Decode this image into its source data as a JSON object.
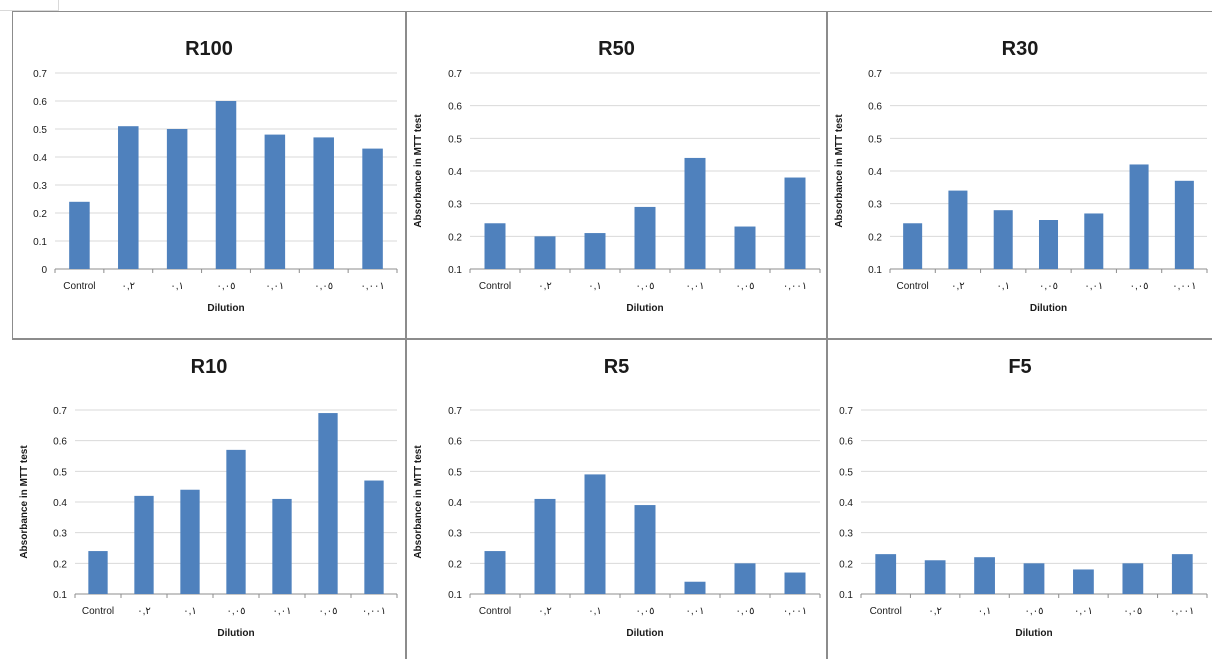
{
  "colors": {
    "bar": "#4f81bd",
    "grid": "#d9d9d9",
    "axis": "#8c8c8c",
    "text": "#1a1a1a"
  },
  "chart_data": [
    {
      "type": "bar",
      "title": "R100",
      "xlabel": "Dilution",
      "ylabel": "",
      "categories": [
        "Control",
        "٠,٢",
        "٠,١",
        "٠,٠٥",
        "٠,٠١",
        "٠,٠٥",
        "٠,٠٠١"
      ],
      "values": [
        0.24,
        0.51,
        0.5,
        0.6,
        0.48,
        0.47,
        0.43
      ],
      "ylim": [
        0,
        0.7
      ],
      "yticks": [
        "0",
        "0.1",
        "0.2",
        "0.3",
        "0.4",
        "0.5",
        "0.6",
        "0.7"
      ],
      "grid": true,
      "legend": "none"
    },
    {
      "type": "bar",
      "title": "R50",
      "xlabel": "Dilution",
      "ylabel": "Absorbance in MTT test",
      "categories": [
        "Control",
        "٠,٢",
        "٠,١",
        "٠,٠٥",
        "٠,٠١",
        "٠,٠٥",
        "٠,٠٠١"
      ],
      "values": [
        0.24,
        0.2,
        0.21,
        0.29,
        0.44,
        0.23,
        0.38
      ],
      "ylim": [
        0.1,
        0.7
      ],
      "yticks": [
        "0.1",
        "0.2",
        "0.3",
        "0.4",
        "0.5",
        "0.6",
        "0.7"
      ],
      "grid": true,
      "legend": "none"
    },
    {
      "type": "bar",
      "title": "R30",
      "xlabel": "Dilution",
      "ylabel": "Absorbance in MTT test",
      "categories": [
        "Control",
        "٠,٢",
        "٠,١",
        "٠,٠٥",
        "٠,٠١",
        "٠,٠٥",
        "٠,٠٠١"
      ],
      "values": [
        0.24,
        0.34,
        0.28,
        0.25,
        0.27,
        0.42,
        0.37
      ],
      "ylim": [
        0.1,
        0.7
      ],
      "yticks": [
        "0.1",
        "0.2",
        "0.3",
        "0.4",
        "0.5",
        "0.6",
        "0.7"
      ],
      "grid": true,
      "legend": "none"
    },
    {
      "type": "bar",
      "title": "R10",
      "xlabel": "Dilution",
      "ylabel": "Absorbance in MTT test",
      "categories": [
        "Control",
        "٠,٢",
        "٠,١",
        "٠,٠٥",
        "٠,٠١",
        "٠,٠٥",
        "٠,٠٠١"
      ],
      "values": [
        0.24,
        0.42,
        0.44,
        0.57,
        0.41,
        0.69,
        0.47
      ],
      "ylim": [
        0.1,
        0.7
      ],
      "yticks": [
        "0.1",
        "0.2",
        "0.3",
        "0.4",
        "0.5",
        "0.6",
        "0.7"
      ],
      "grid": true,
      "legend": "none"
    },
    {
      "type": "bar",
      "title": "R5",
      "xlabel": "Dilution",
      "ylabel": "Absorbance in MTT test",
      "categories": [
        "Control",
        "٠,٢",
        "٠,١",
        "٠,٠٥",
        "٠,٠١",
        "٠,٠٥",
        "٠,٠٠١"
      ],
      "values": [
        0.24,
        0.41,
        0.49,
        0.39,
        0.14,
        0.2,
        0.17
      ],
      "ylim": [
        0.1,
        0.7
      ],
      "yticks": [
        "0.1",
        "0.2",
        "0.3",
        "0.4",
        "0.5",
        "0.6",
        "0.7"
      ],
      "grid": true,
      "legend": "none"
    },
    {
      "type": "bar",
      "title": "F5",
      "xlabel": "Dilution",
      "ylabel": "",
      "categories": [
        "Control",
        "٠,٢",
        "٠,١",
        "٠,٠٥",
        "٠,٠١",
        "٠,٠٥",
        "٠,٠٠١"
      ],
      "values": [
        0.23,
        0.21,
        0.22,
        0.2,
        0.18,
        0.2,
        0.23
      ],
      "ylim": [
        0.1,
        0.7
      ],
      "yticks": [
        "0.1",
        "0.2",
        "0.3",
        "0.4",
        "0.5",
        "0.6",
        "0.7"
      ],
      "grid": true,
      "legend": "none"
    }
  ]
}
